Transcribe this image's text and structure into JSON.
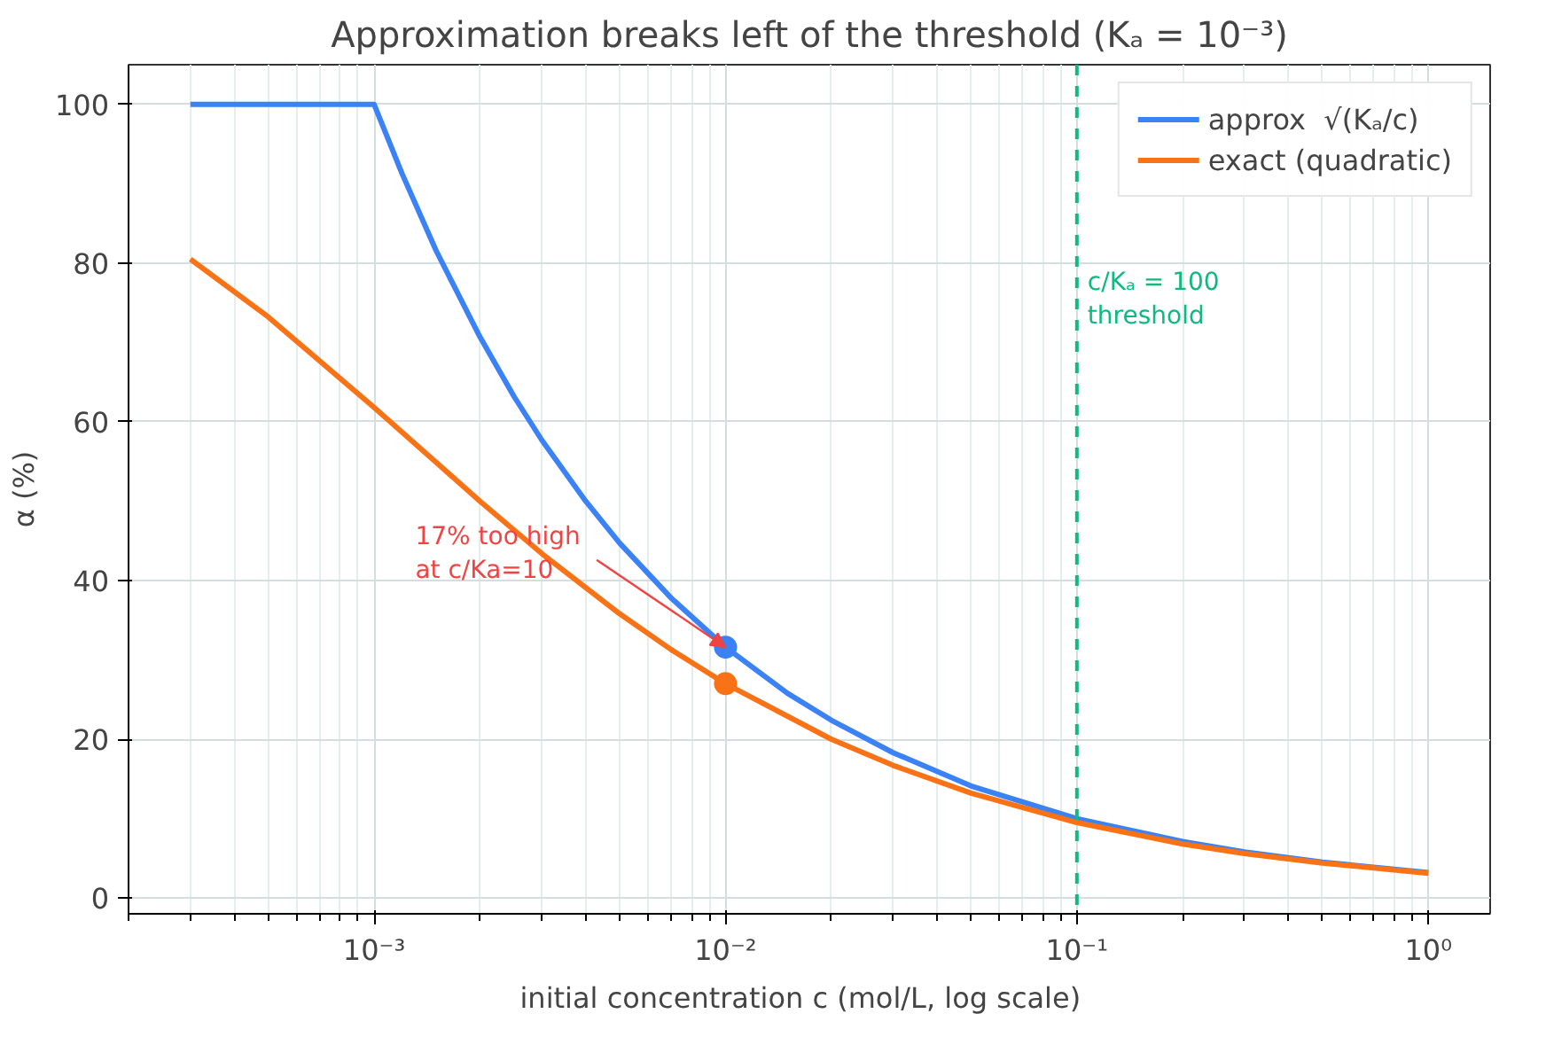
{
  "chart_data": {
    "type": "line",
    "title": "Approximation breaks left of the threshold (Kₐ = 10⁻³)",
    "xlabel": "initial concentration  c  (mol/L, log scale)",
    "ylabel": "α (%)",
    "log": "x",
    "xlim": [
      0.0002,
      1.5
    ],
    "xticks": [
      {
        "value": 0.001,
        "label": "10⁻³"
      },
      {
        "value": 0.01,
        "label": "10⁻²"
      },
      {
        "value": 0.1,
        "label": "10⁻¹"
      },
      {
        "value": 1,
        "label": "10⁰"
      }
    ],
    "ylim": [
      -2,
      105
    ],
    "yticks": [
      0,
      20,
      40,
      60,
      80,
      100
    ],
    "grid": true,
    "legend": "top right",
    "line_style": "solid",
    "series": [
      {
        "name": "approx  √(Kₐ/c)",
        "color": "#3b82f6",
        "x": [
          0.0003,
          0.0005,
          0.001,
          0.0012,
          0.0015,
          0.002,
          0.0025,
          0.003,
          0.004,
          0.005,
          0.007,
          0.01,
          0.015,
          0.02,
          0.03,
          0.05,
          0.1,
          0.2,
          0.3,
          0.5,
          1
        ],
        "values": [
          100,
          100,
          100,
          91.3,
          81.6,
          70.7,
          63.2,
          57.7,
          50.0,
          44.7,
          37.8,
          31.6,
          25.8,
          22.4,
          18.3,
          14.1,
          10.0,
          7.1,
          5.8,
          4.5,
          3.2
        ]
      },
      {
        "name": "exact (quadratic)",
        "color": "#f97316",
        "x": [
          0.0003,
          0.0005,
          0.001,
          0.0015,
          0.002,
          0.003,
          0.005,
          0.007,
          0.01,
          0.02,
          0.03,
          0.05,
          0.1,
          0.2,
          0.3,
          0.5,
          1
        ],
        "values": [
          80.5,
          73.2,
          61.8,
          54.9,
          50.0,
          43.4,
          35.8,
          31.3,
          27.0,
          20.0,
          16.7,
          13.2,
          9.5,
          6.8,
          5.6,
          4.4,
          3.1
        ]
      },
      {
        "type": "scatter",
        "marker": "circle",
        "color": "#3b82f6",
        "x": [
          0.01
        ],
        "values": [
          31.6
        ]
      },
      {
        "type": "scatter",
        "marker": "circle",
        "color": "#f97316",
        "x": [
          0.01
        ],
        "values": [
          27.0
        ]
      }
    ],
    "ref_lines": [
      {
        "axis": "x",
        "value": 0.1,
        "label": "c/Kₐ = 100\nthreshold",
        "color": "#10b981",
        "line_style": "dashed"
      }
    ],
    "annotations": [
      {
        "text": "17% too high\nat c/Ka=10",
        "x": 0.01,
        "y": 31.6
      }
    ]
  }
}
